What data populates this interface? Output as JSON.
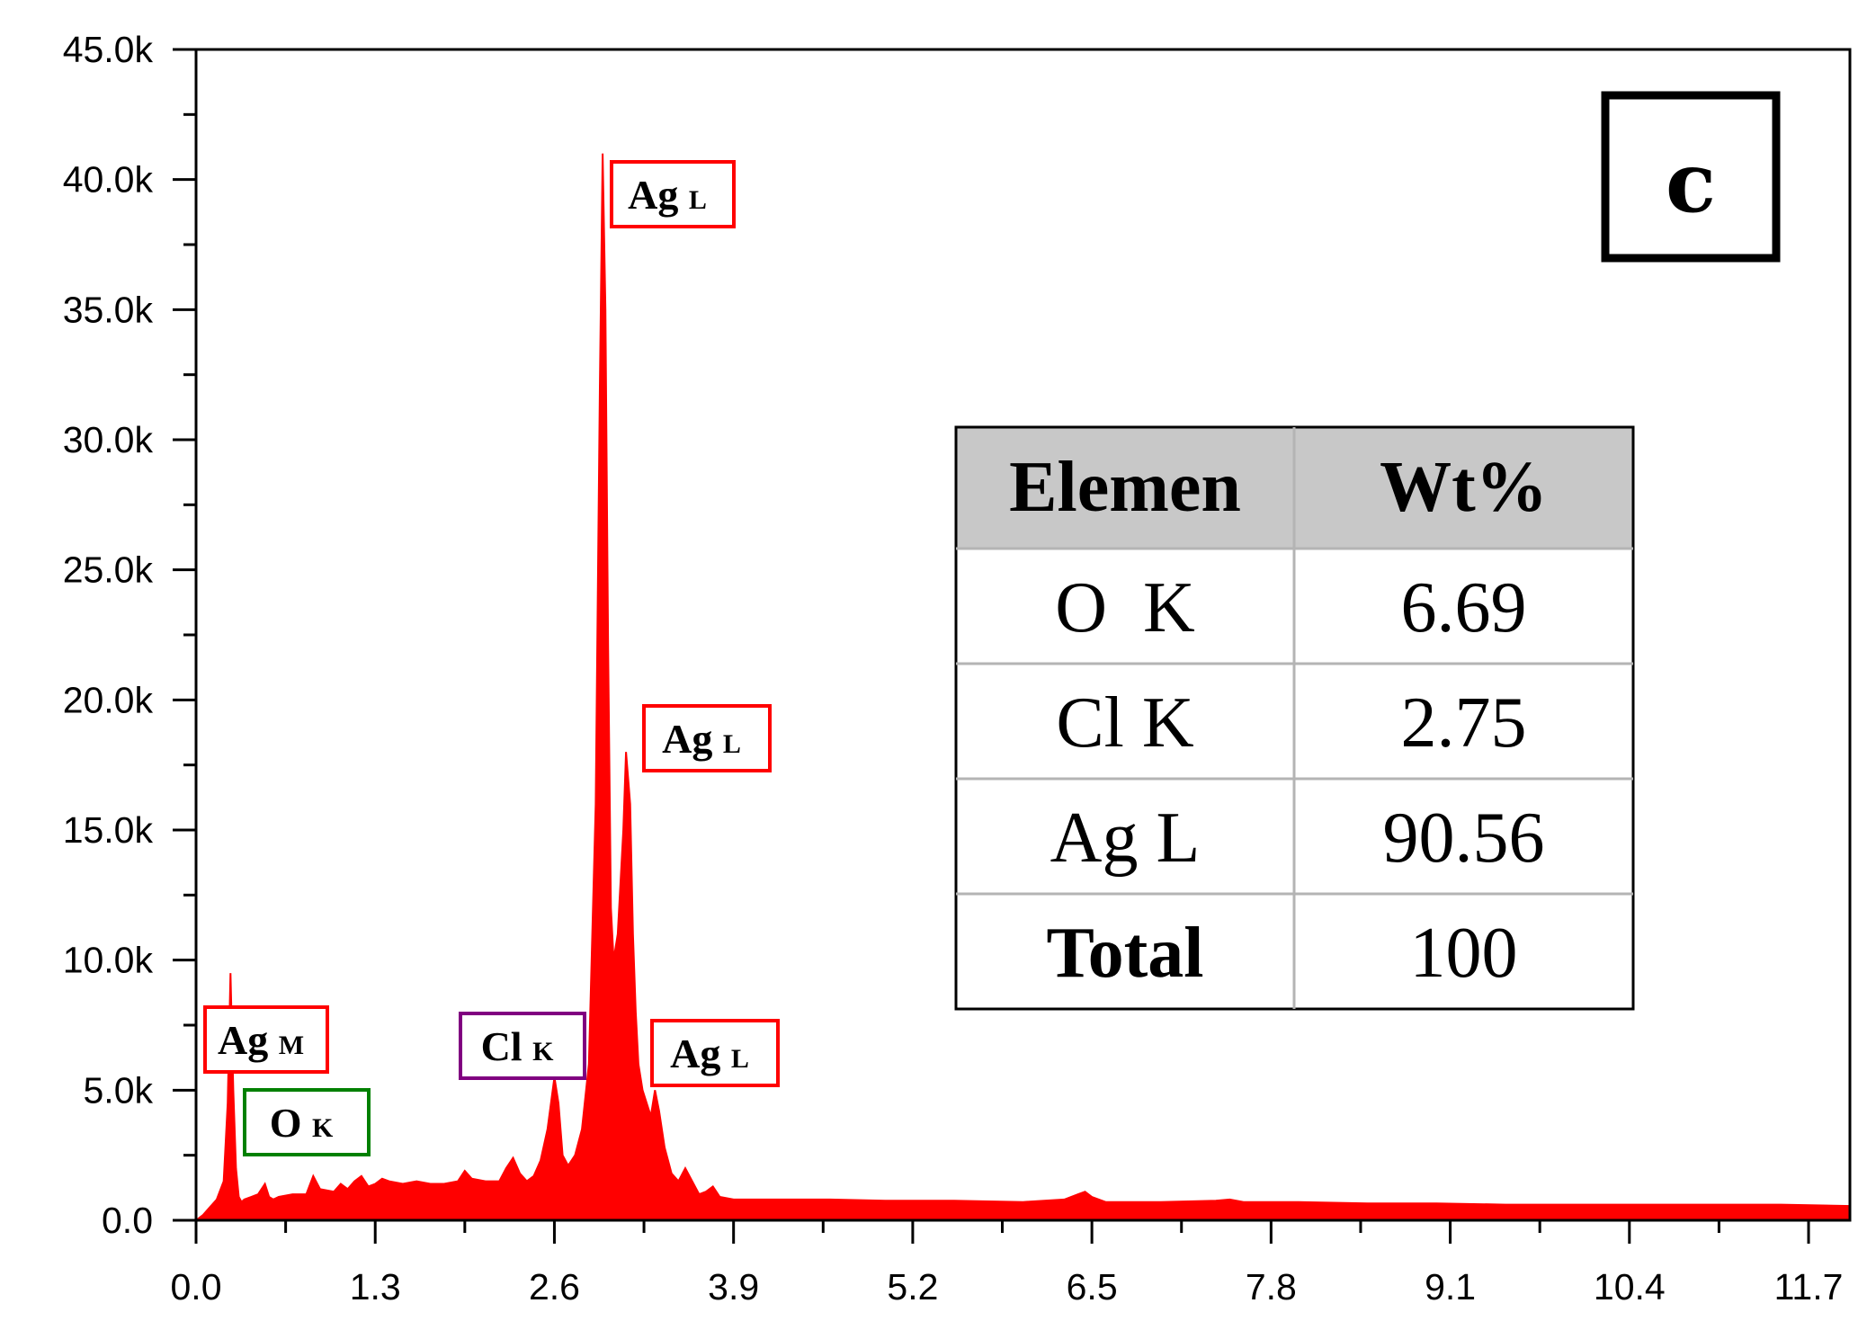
{
  "panel_label": "c",
  "colors": {
    "spectrum": "#ff0000",
    "ag_box": "#ff0000",
    "o_box": "#008000",
    "cl_box": "#800080",
    "table_header_bg": "#c8c8c8",
    "table_grid": "#b4b4b4"
  },
  "chart_data": {
    "type": "area",
    "title": "",
    "xlabel": "",
    "ylabel": "",
    "xlim": [
      0,
      12.0
    ],
    "ylim": [
      0,
      45000
    ],
    "x_ticks": [
      0.0,
      1.3,
      2.6,
      3.9,
      5.2,
      6.5,
      7.8,
      9.1,
      10.4,
      11.7
    ],
    "x_tick_labels": [
      "0.0",
      "1.3",
      "2.6",
      "3.9",
      "5.2",
      "6.5",
      "7.8",
      "9.1",
      "10.4",
      "11.7"
    ],
    "y_ticks": [
      0,
      5000,
      10000,
      15000,
      20000,
      25000,
      30000,
      35000,
      40000,
      45000
    ],
    "y_tick_labels": [
      "0.0",
      "5.0k",
      "10.0k",
      "15.0k",
      "20.0k",
      "25.0k",
      "30.0k",
      "35.0k",
      "40.0k",
      "45.0k"
    ],
    "series": [
      {
        "x": [
          0.0,
          0.05,
          0.1,
          0.15,
          0.2,
          0.23,
          0.25,
          0.27,
          0.29,
          0.31,
          0.33,
          0.35,
          0.4,
          0.45,
          0.5,
          0.53,
          0.56,
          0.6,
          0.7,
          0.8,
          0.85,
          0.9,
          1.0,
          1.05,
          1.1,
          1.15,
          1.2,
          1.25,
          1.3,
          1.35,
          1.4,
          1.5,
          1.6,
          1.7,
          1.8,
          1.9,
          1.95,
          2.0,
          2.1,
          2.2,
          2.25,
          2.3,
          2.35,
          2.4,
          2.45,
          2.5,
          2.55,
          2.6,
          2.63,
          2.66,
          2.7,
          2.75,
          2.8,
          2.85,
          2.9,
          2.93,
          2.95,
          2.97,
          2.99,
          3.01,
          3.03,
          3.06,
          3.1,
          3.12,
          3.15,
          3.17,
          3.19,
          3.21,
          3.24,
          3.27,
          3.3,
          3.33,
          3.36,
          3.4,
          3.45,
          3.5,
          3.55,
          3.6,
          3.65,
          3.7,
          3.75,
          3.8,
          3.9,
          4.0,
          4.3,
          4.6,
          5.0,
          5.5,
          6.0,
          6.3,
          6.4,
          6.45,
          6.5,
          6.6,
          7.0,
          7.4,
          7.5,
          7.6,
          8.0,
          8.5,
          9.0,
          9.5,
          10.0,
          10.5,
          11.0,
          11.5,
          12.0
        ],
        "y": [
          0,
          200,
          500,
          800,
          1500,
          4500,
          9500,
          5000,
          2000,
          900,
          700,
          800,
          900,
          1000,
          1400,
          900,
          800,
          900,
          1000,
          1000,
          1700,
          1200,
          1100,
          1400,
          1200,
          1500,
          1700,
          1300,
          1400,
          1600,
          1500,
          1400,
          1500,
          1400,
          1400,
          1500,
          1900,
          1600,
          1500,
          1500,
          2000,
          2400,
          1800,
          1500,
          1700,
          2300,
          3500,
          5500,
          4500,
          2500,
          2100,
          2500,
          3500,
          6000,
          16000,
          32000,
          41000,
          35000,
          22000,
          12000,
          10000,
          11000,
          15000,
          18000,
          16000,
          11000,
          8000,
          6000,
          5000,
          4500,
          4000,
          5000,
          4200,
          2800,
          1800,
          1500,
          2000,
          1500,
          1000,
          1100,
          1300,
          900,
          800,
          800,
          800,
          800,
          750,
          750,
          700,
          800,
          1000,
          1100,
          900,
          700,
          700,
          750,
          800,
          700,
          700,
          650,
          650,
          600,
          600,
          600,
          600,
          600,
          550
        ]
      }
    ],
    "annotations": [
      {
        "element": "Ag",
        "line": "L",
        "color_key": "ag_box",
        "x": 2.98,
        "y": 41000
      },
      {
        "element": "Ag",
        "line": "L",
        "color_key": "ag_box",
        "x": 3.15,
        "y": 18000
      },
      {
        "element": "Ag",
        "line": "L",
        "color_key": "ag_box",
        "x": 3.33,
        "y": 5000
      },
      {
        "element": "Ag",
        "line": "M",
        "color_key": "ag_box",
        "x": 0.27,
        "y": 9500
      },
      {
        "element": "O",
        "line": "K",
        "color_key": "o_box",
        "x": 0.52,
        "y": 1400
      },
      {
        "element": "Cl",
        "line": "K",
        "color_key": "cl_box",
        "x": 2.62,
        "y": 5500
      }
    ],
    "legend": "none",
    "grid": false
  },
  "table": {
    "headers": [
      "Elemen",
      "Wt%"
    ],
    "rows": [
      [
        "O  K",
        "6.69"
      ],
      [
        "Cl K",
        "2.75"
      ],
      [
        "Ag L",
        "90.56"
      ],
      [
        "Total",
        "100"
      ]
    ],
    "bold_first_col_rows": [
      3
    ]
  }
}
